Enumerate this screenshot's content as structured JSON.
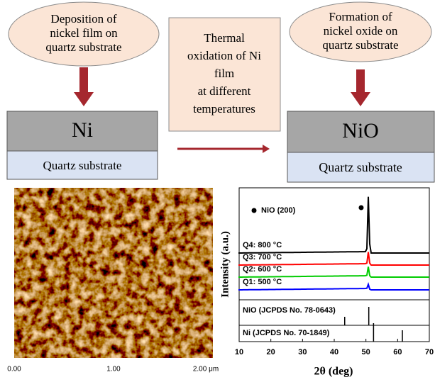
{
  "steps": [
    {
      "lines": [
        "Deposition of",
        "nickel film on",
        "quartz substrate"
      ]
    },
    {
      "lines": [
        "Thermal",
        "oxidation of Ni",
        "film",
        "at different",
        "temperatures"
      ]
    },
    {
      "lines": [
        "Formation of",
        "nickel oxide on",
        "quartz substrate"
      ]
    }
  ],
  "layers": {
    "left": {
      "top": "Ni",
      "bottom": "Quartz substrate"
    },
    "right": {
      "top": "NiO",
      "bottom": "Quartz substrate"
    }
  },
  "afm": {
    "ticks": [
      "0.00",
      "1.00",
      "2.00 μm"
    ]
  },
  "xrd": {
    "xlabel": "2θ (deg)",
    "ylabel": "Intensity (a.u.)",
    "legend": "NiO (200)",
    "xlim": [
      10,
      70
    ],
    "xticks": [
      10,
      20,
      30,
      40,
      50,
      60,
      70
    ],
    "series": [
      {
        "name": "Q4: 800 °C",
        "color": "#000000",
        "peak": 50.8
      },
      {
        "name": "Q3: 700 °C",
        "color": "#ff0000",
        "peak": 50.8
      },
      {
        "name": "Q2: 600 °C",
        "color": "#00cc00",
        "peak": 50.8
      },
      {
        "name": "Q1: 500 °C",
        "color": "#0000ff",
        "peak": 50.8
      }
    ],
    "references": [
      {
        "name": "NiO  (JCPDS No. 78-0643)",
        "peaks": [
          43.3,
          50.9
        ]
      },
      {
        "name": "Ni    (JCPDS No. 70-1849)",
        "peaks": [
          52.4,
          61.5
        ]
      }
    ],
    "marker_x": 48.5
  }
}
